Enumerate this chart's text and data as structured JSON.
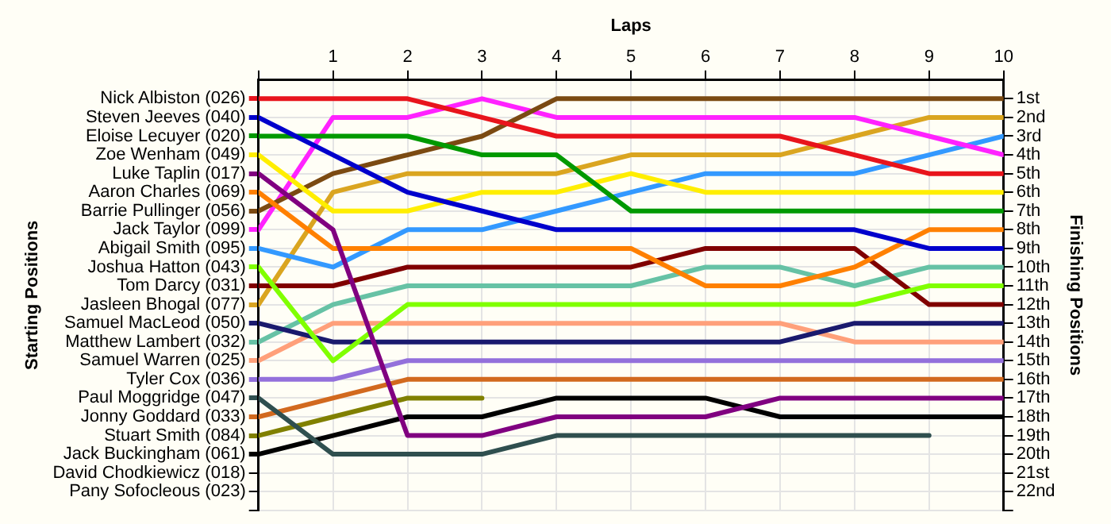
{
  "chart_data": {
    "type": "line",
    "xlabel": "Laps",
    "legend_title": "Starting Positions",
    "ylabel": "Finishing Positions",
    "legend": "left",
    "grid": true,
    "marker": "none",
    "line_style": "solid",
    "x": [
      0,
      1,
      2,
      3,
      4,
      5,
      6,
      7,
      8,
      9,
      10
    ],
    "xlim": [
      0,
      10
    ],
    "xticks": [
      {
        "value": 0,
        "label": null
      },
      1,
      2,
      3,
      4,
      5,
      6,
      7,
      8,
      9,
      10
    ],
    "ylim": [
      23,
      0
    ],
    "yticks": [
      {
        "value": 1,
        "label": "1st"
      },
      {
        "value": 2,
        "label": "2nd"
      },
      {
        "value": 3,
        "label": "3rd"
      },
      {
        "value": 4,
        "label": "4th"
      },
      {
        "value": 5,
        "label": "5th"
      },
      {
        "value": 6,
        "label": "6th"
      },
      {
        "value": 7,
        "label": "7th"
      },
      {
        "value": 8,
        "label": "8th"
      },
      {
        "value": 9,
        "label": "9th"
      },
      {
        "value": 10,
        "label": "10th"
      },
      {
        "value": 11,
        "label": "11th"
      },
      {
        "value": 12,
        "label": "12th"
      },
      {
        "value": 13,
        "label": "13th"
      },
      {
        "value": 14,
        "label": "14th"
      },
      {
        "value": 15,
        "label": "15th"
      },
      {
        "value": 16,
        "label": "16th"
      },
      {
        "value": 17,
        "label": "17th"
      },
      {
        "value": 18,
        "label": "18th"
      },
      {
        "value": 19,
        "label": "19th"
      },
      {
        "value": 20,
        "label": "20th"
      },
      {
        "value": 21,
        "label": "21st"
      },
      {
        "value": 22,
        "label": "22nd"
      },
      {
        "value": 23,
        "label": null
      }
    ],
    "annotations": [
      "David Chodkiewicz (018)",
      "Pany Sofocleous (023)"
    ],
    "series": [
      {
        "name": "Nick Albiston (026)",
        "color": "#e8141c",
        "values": [
          1,
          1,
          1,
          2,
          3,
          3,
          3,
          3,
          4,
          5,
          5
        ]
      },
      {
        "name": "Steven Jeeves (040)",
        "color": "#0000cc",
        "values": [
          2,
          4,
          6,
          7,
          8,
          8,
          8,
          8,
          8,
          9,
          9
        ]
      },
      {
        "name": "Eloise Lecuyer (020)",
        "color": "#009900",
        "values": [
          3,
          3,
          3,
          4,
          4,
          7,
          7,
          7,
          7,
          7,
          7
        ]
      },
      {
        "name": "Zoe Wenham (049)",
        "color": "#ffee00",
        "values": [
          4,
          7,
          7,
          6,
          6,
          5,
          6,
          6,
          6,
          6,
          6
        ]
      },
      {
        "name": "Luke Taplin (017)",
        "color": "#800080",
        "values": [
          5,
          8,
          19,
          19,
          18,
          18,
          18,
          17,
          17,
          17,
          17
        ]
      },
      {
        "name": "Aaron Charles (069)",
        "color": "#ff8000",
        "values": [
          6,
          9,
          9,
          9,
          9,
          9,
          11,
          11,
          10,
          8,
          8
        ]
      },
      {
        "name": "Barrie Pullinger (056)",
        "color": "#7b4a12",
        "values": [
          7,
          5,
          4,
          3,
          1,
          1,
          1,
          1,
          1,
          1,
          1
        ]
      },
      {
        "name": "Jack Taylor (099)",
        "color": "#ff22ff",
        "values": [
          8,
          2,
          2,
          1,
          2,
          2,
          2,
          2,
          2,
          3,
          4
        ]
      },
      {
        "name": "Abigail Smith (095)",
        "color": "#3399ff",
        "values": [
          9,
          10,
          8,
          8,
          7,
          6,
          5,
          5,
          5,
          4,
          3
        ]
      },
      {
        "name": "Joshua Hatton (043)",
        "color": "#80ff00",
        "values": [
          10,
          15,
          12,
          12,
          12,
          12,
          12,
          12,
          12,
          11,
          11
        ]
      },
      {
        "name": "Tom Darcy (031)",
        "color": "#800000",
        "values": [
          11,
          11,
          10,
          10,
          10,
          10,
          9,
          9,
          9,
          12,
          12
        ]
      },
      {
        "name": "Jasleen Bhogal (077)",
        "color": "#daa520",
        "values": [
          12,
          6,
          5,
          5,
          5,
          4,
          4,
          4,
          3,
          2,
          2
        ]
      },
      {
        "name": "Samuel MacLeod (050)",
        "color": "#1a1a6e",
        "values": [
          13,
          14,
          14,
          14,
          14,
          14,
          14,
          14,
          13,
          13,
          13
        ]
      },
      {
        "name": "Matthew Lambert (032)",
        "color": "#66c2a5",
        "values": [
          14,
          12,
          11,
          11,
          11,
          11,
          10,
          10,
          11,
          10,
          10
        ]
      },
      {
        "name": "Samuel Warren (025)",
        "color": "#ffa07a",
        "values": [
          15,
          13,
          13,
          13,
          13,
          13,
          13,
          13,
          14,
          14,
          14
        ]
      },
      {
        "name": "Tyler Cox (036)",
        "color": "#9370db",
        "values": [
          16,
          16,
          15,
          15,
          15,
          15,
          15,
          15,
          15,
          15,
          15
        ]
      },
      {
        "name": "Paul Moggridge (047)",
        "color": "#2f4f4f",
        "values": [
          17,
          20,
          20,
          20,
          19,
          19,
          19,
          19,
          19,
          19,
          null
        ]
      },
      {
        "name": "Jonny Goddard (033)",
        "color": "#d2691e",
        "values": [
          18,
          17,
          16,
          16,
          16,
          16,
          16,
          16,
          16,
          16,
          16
        ]
      },
      {
        "name": "Stuart Smith (084)",
        "color": "#808000",
        "values": [
          19,
          18,
          17,
          17,
          null,
          null,
          null,
          null,
          null,
          null,
          null
        ]
      },
      {
        "name": "Jack Buckingham (061)",
        "color": "#000000",
        "values": [
          20,
          19,
          18,
          18,
          17,
          17,
          17,
          18,
          18,
          18,
          18
        ]
      }
    ]
  }
}
